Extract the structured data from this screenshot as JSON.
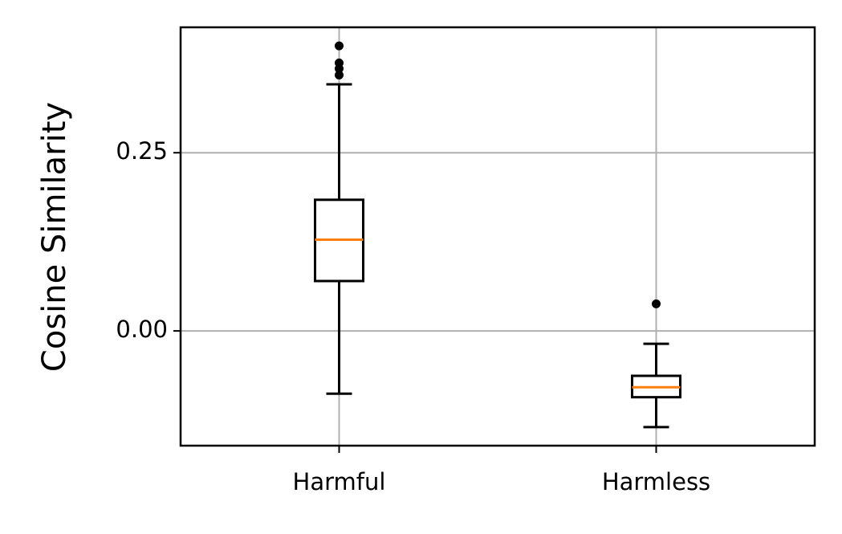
{
  "chart_data": {
    "type": "box",
    "ylabel": "Cosine Similarity",
    "categories": [
      "Harmful",
      "Harmless"
    ],
    "boxes": [
      {
        "min": -0.088,
        "q1": 0.07,
        "median": 0.128,
        "q3": 0.184,
        "max": 0.346,
        "outliers": [
          0.4,
          0.376,
          0.368,
          0.359
        ]
      },
      {
        "min": -0.135,
        "q1": -0.093,
        "median": -0.079,
        "q3": -0.063,
        "max": -0.018,
        "outliers": [
          0.038
        ]
      }
    ],
    "color": "#000000",
    "median_color": "#ff7f0e",
    "ylim": [
      -0.161,
      0.426
    ],
    "yticks": [
      {
        "value": 0,
        "label": "0.00"
      },
      {
        "value": 0.25,
        "label": "0.25"
      }
    ],
    "grid": true
  }
}
